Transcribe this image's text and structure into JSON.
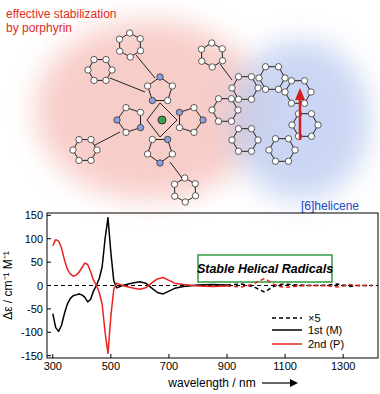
{
  "chart_data": {
    "type": "line",
    "y_label": "Δε / cm⁻¹ M⁻¹",
    "x_label": "wavelength / nm",
    "xlim": [
      280,
      1420
    ],
    "xticks": [
      300,
      500,
      700,
      900,
      1100,
      1300
    ],
    "ylim": [
      -155,
      155
    ],
    "yticks": [
      -150,
      -100,
      -50,
      0,
      50,
      100,
      150
    ],
    "legend": "lower right",
    "series": [
      {
        "name": "1st (M)",
        "color": "#000000",
        "line_style": "solid",
        "x": [
          300,
          310,
          320,
          330,
          340,
          350,
          360,
          370,
          380,
          390,
          400,
          410,
          420,
          430,
          440,
          450,
          460,
          470,
          480,
          490,
          500,
          510,
          520,
          540,
          560,
          580,
          600,
          620,
          640,
          660,
          680,
          700,
          720,
          750,
          800,
          850,
          900
        ],
        "values": [
          -60,
          -90,
          -98,
          -85,
          -60,
          -40,
          -28,
          -22,
          -20,
          -18,
          -20,
          -25,
          -35,
          -30,
          -12,
          0,
          15,
          40,
          100,
          145,
          70,
          10,
          -5,
          0,
          3,
          6,
          8,
          5,
          -5,
          -15,
          -18,
          -12,
          -6,
          -2,
          1,
          2,
          1
        ]
      },
      {
        "name": "2nd (P)",
        "color": "#e8231e",
        "line_style": "solid",
        "x": [
          300,
          310,
          320,
          330,
          340,
          350,
          360,
          370,
          380,
          390,
          400,
          410,
          420,
          430,
          440,
          450,
          460,
          470,
          480,
          490,
          500,
          510,
          520,
          540,
          560,
          580,
          600,
          620,
          640,
          660,
          680,
          700,
          720,
          750,
          800,
          850,
          900
        ],
        "values": [
          85,
          98,
          95,
          80,
          55,
          35,
          25,
          20,
          22,
          28,
          38,
          48,
          45,
          30,
          12,
          0,
          -15,
          -40,
          -100,
          -145,
          -65,
          -8,
          5,
          0,
          -3,
          -6,
          -8,
          -5,
          5,
          14,
          17,
          11,
          5,
          2,
          -1,
          -2,
          -1
        ]
      },
      {
        "color": "#000000",
        "line_style": "dashed",
        "x": [
          900,
          925,
          950,
          975,
          1000,
          1015,
          1030,
          1045,
          1060,
          1080,
          1100,
          1150,
          1200,
          1250,
          1280,
          1300,
          1320,
          1350,
          1400
        ],
        "values": [
          1,
          2,
          3,
          0,
          -5,
          -10,
          -14,
          -8,
          -2,
          2,
          3,
          1,
          0,
          1,
          3,
          1,
          -2,
          0,
          0
        ]
      },
      {
        "color": "#e8231e",
        "line_style": "dashed",
        "x": [
          900,
          925,
          950,
          975,
          1000,
          1015,
          1030,
          1045,
          1060,
          1080,
          1100,
          1150,
          1200,
          1250,
          1280,
          1300,
          1320,
          1350,
          1400
        ],
        "values": [
          -1,
          -2,
          -3,
          0,
          6,
          11,
          15,
          9,
          3,
          -2,
          -4,
          -1,
          0,
          -1,
          -3,
          -1,
          2,
          0,
          0
        ]
      }
    ],
    "annotations": [
      "×5"
    ]
  },
  "graphic": {
    "left_label": [
      "effective stabilization",
      "by porphyrin"
    ],
    "right_label": "[6]helicene",
    "banner": "Stable Helical Radicals"
  }
}
